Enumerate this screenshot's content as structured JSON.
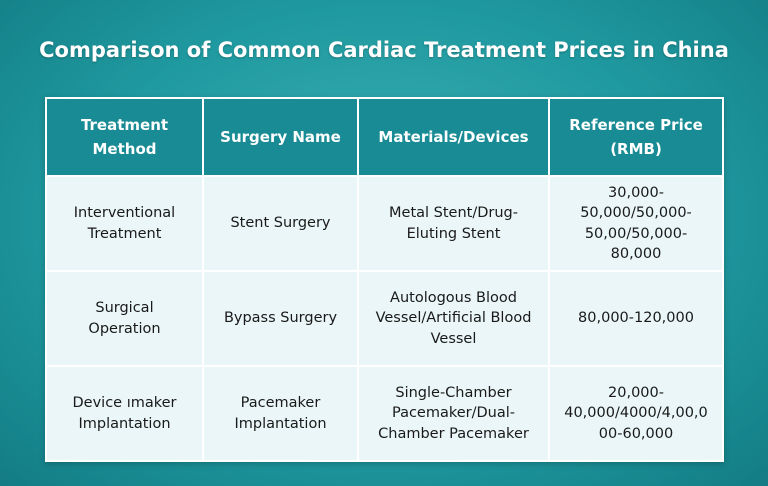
{
  "title": "Comparison of Common Cardiac Treatment Prices in China",
  "table": {
    "header": [
      "Treatment Method",
      "Surgery Name",
      "Materials/Devices",
      "Reference Price (RMB)"
    ],
    "rows": [
      [
        "Interventional Treatment",
        "Stent Surgery",
        "Metal Stent/Drug-Eluting Stent",
        "30,000-50,000/50,000-50,00/50,000-80,000"
      ],
      [
        "Surgical Operation",
        "Bypass Surgery",
        "Autologous Blood Vessel/Artificial Blood Vessel",
        "80,000-120,000"
      ],
      [
        "Device ımaker Implantation",
        "Pacemaker Implantation",
        "Single-Chamber Pacemaker/Dual-Chamber Pacemaker",
        "20,000-40,000/4000/4,00,000-60,000"
      ]
    ]
  }
}
